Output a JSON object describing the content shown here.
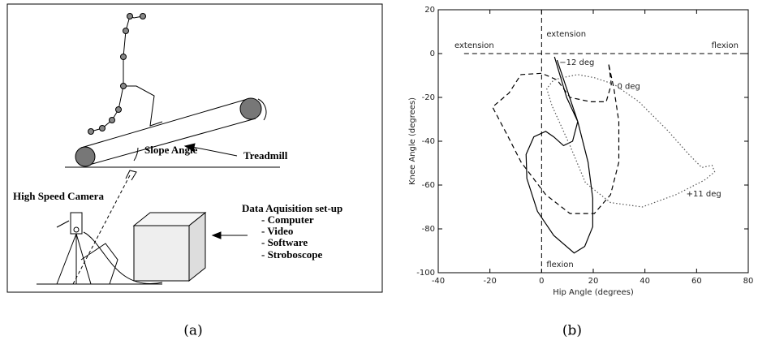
{
  "diagram": {
    "labels": {
      "slope": "Slope Angle",
      "treadmill": "Treadmill",
      "camera": "High Speed Camera",
      "daq_title": "Data Aquisition set-up",
      "daq_items": [
        "- Computer",
        "- Video",
        "- Software",
        "- Stroboscope"
      ]
    },
    "caption": "(a)"
  },
  "chart_data": {
    "type": "line",
    "caption": "(b)",
    "xlabel": "Hip Angle (degrees)",
    "ylabel": "Knee Angle (degrees)",
    "xlim": [
      -40,
      80
    ],
    "ylim": [
      -100,
      20
    ],
    "xticks": [
      -40,
      -20,
      0,
      20,
      40,
      60,
      80
    ],
    "yticks": [
      -100,
      -80,
      -60,
      -40,
      -20,
      0,
      20
    ],
    "hline": 0,
    "vline": 0,
    "annotations": [
      "extension",
      "flexion",
      "extension",
      "flexion"
    ],
    "series": [
      {
        "name": "−12 deg",
        "color": "#000",
        "style": "solid",
        "x": [
          5,
          9.7,
          14,
          12,
          8.5,
          4.7,
          1.6,
          -3,
          -6,
          -5.7,
          -1.6,
          4.7,
          12.6,
          16.7,
          19.8,
          19.8,
          18,
          14,
          6
        ],
        "values": [
          -1.5,
          -20,
          -31,
          -40,
          -42,
          -38,
          -35.5,
          -38,
          -46,
          -57,
          -72,
          -83,
          -91,
          -88,
          -79,
          -66,
          -49.6,
          -31,
          -3
        ]
      },
      {
        "name": "0 deg",
        "color": "#000",
        "style": "dashed",
        "x": [
          26,
          27,
          25,
          19,
          11,
          6,
          0,
          -8,
          -12.6,
          -19,
          -13.5,
          -7.9,
          1.6,
          11,
          20.4,
          26.7,
          29.9,
          29.9,
          28,
          26
        ],
        "values": [
          -5,
          -14,
          -22,
          -22,
          -20,
          -12,
          -9,
          -9.6,
          -18,
          -24.4,
          -36.7,
          -49.6,
          -64.4,
          -73,
          -73,
          -64.4,
          -49.6,
          -31,
          -16,
          -5
        ]
      },
      {
        "name": "+11 deg",
        "color": "#555",
        "style": "dotted",
        "x": [
          8,
          14,
          20.4,
          28,
          37.7,
          48.7,
          57,
          62,
          66,
          67,
          63,
          52,
          39,
          26.7,
          17,
          11,
          4,
          2,
          4.7,
          8
        ],
        "values": [
          -11,
          -9.6,
          -11,
          -14,
          -22,
          -35,
          -46,
          -52,
          -51,
          -54,
          -57.8,
          -64.4,
          -70,
          -68,
          -59,
          -42,
          -23.7,
          -16,
          -12,
          -11
        ]
      }
    ]
  }
}
